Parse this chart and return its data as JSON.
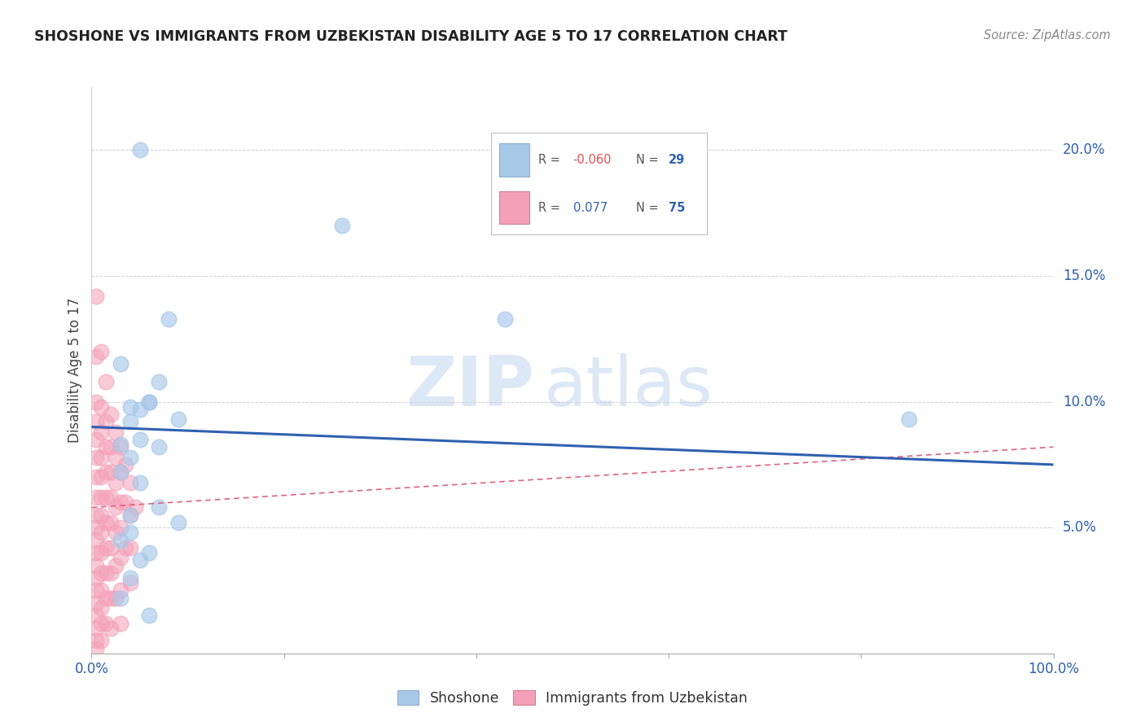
{
  "title": "SHOSHONE VS IMMIGRANTS FROM UZBEKISTAN DISABILITY AGE 5 TO 17 CORRELATION CHART",
  "source": "Source: ZipAtlas.com",
  "ylabel": "Disability Age 5 to 17",
  "xlim": [
    0,
    1.0
  ],
  "ylim": [
    0,
    0.225
  ],
  "yticks_right": [
    0.05,
    0.1,
    0.15,
    0.2
  ],
  "ytick_labels_right": [
    "5.0%",
    "10.0%",
    "15.0%",
    "20.0%"
  ],
  "blue_color": "#a8c8e8",
  "pink_color": "#f4a0b8",
  "blue_line_color": "#3060b0",
  "pink_line_color": "#e06080",
  "grid_color": "#d0d0d0",
  "background_color": "#ffffff",
  "shoshone_x": [
    0.05,
    0.08,
    0.26,
    0.43,
    0.03,
    0.06,
    0.04,
    0.04,
    0.07,
    0.05,
    0.06,
    0.09,
    0.03,
    0.05,
    0.04,
    0.07,
    0.03,
    0.05,
    0.07,
    0.04,
    0.09,
    0.04,
    0.03,
    0.06,
    0.85,
    0.05,
    0.04,
    0.03,
    0.06
  ],
  "shoshone_y": [
    0.2,
    0.133,
    0.17,
    0.133,
    0.115,
    0.1,
    0.098,
    0.092,
    0.108,
    0.097,
    0.1,
    0.093,
    0.083,
    0.085,
    0.078,
    0.082,
    0.072,
    0.068,
    0.058,
    0.055,
    0.052,
    0.048,
    0.045,
    0.04,
    0.093,
    0.037,
    0.03,
    0.022,
    0.015
  ],
  "uzbek_x": [
    0.005,
    0.005,
    0.005,
    0.005,
    0.005,
    0.005,
    0.005,
    0.005,
    0.005,
    0.005,
    0.005,
    0.005,
    0.005,
    0.005,
    0.005,
    0.005,
    0.005,
    0.005,
    0.005,
    0.005,
    0.01,
    0.01,
    0.01,
    0.01,
    0.01,
    0.01,
    0.01,
    0.01,
    0.01,
    0.01,
    0.01,
    0.01,
    0.01,
    0.01,
    0.015,
    0.015,
    0.015,
    0.015,
    0.015,
    0.015,
    0.015,
    0.015,
    0.015,
    0.015,
    0.02,
    0.02,
    0.02,
    0.02,
    0.02,
    0.02,
    0.02,
    0.02,
    0.02,
    0.025,
    0.025,
    0.025,
    0.025,
    0.025,
    0.025,
    0.025,
    0.03,
    0.03,
    0.03,
    0.03,
    0.03,
    0.03,
    0.03,
    0.035,
    0.035,
    0.035,
    0.04,
    0.04,
    0.04,
    0.04,
    0.045
  ],
  "uzbek_y": [
    0.142,
    0.118,
    0.1,
    0.092,
    0.085,
    0.078,
    0.07,
    0.062,
    0.055,
    0.05,
    0.045,
    0.04,
    0.035,
    0.03,
    0.025,
    0.02,
    0.015,
    0.01,
    0.005,
    0.002,
    0.12,
    0.098,
    0.088,
    0.078,
    0.07,
    0.062,
    0.055,
    0.048,
    0.04,
    0.032,
    0.025,
    0.018,
    0.012,
    0.005,
    0.108,
    0.092,
    0.082,
    0.072,
    0.062,
    0.052,
    0.042,
    0.032,
    0.022,
    0.012,
    0.095,
    0.082,
    0.072,
    0.062,
    0.052,
    0.042,
    0.032,
    0.022,
    0.01,
    0.088,
    0.078,
    0.068,
    0.058,
    0.048,
    0.035,
    0.022,
    0.082,
    0.072,
    0.06,
    0.05,
    0.038,
    0.025,
    0.012,
    0.075,
    0.06,
    0.042,
    0.068,
    0.055,
    0.042,
    0.028,
    0.058
  ],
  "blue_trend_x": [
    0.0,
    1.0
  ],
  "blue_trend_y": [
    0.09,
    0.075
  ],
  "pink_trend_x": [
    0.0,
    1.0
  ],
  "pink_trend_y": [
    0.058,
    0.082
  ],
  "watermark_zip": "ZIP",
  "watermark_atlas": "atlas"
}
